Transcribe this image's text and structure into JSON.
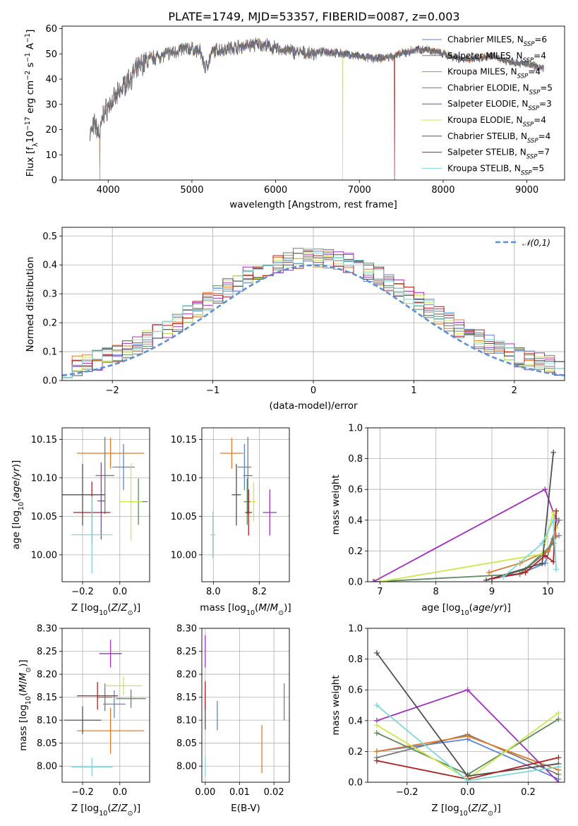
{
  "title": "PLATE=1749, MJD=53357, FIBERID=0087, z=0.003",
  "models": [
    {
      "name": "Chabrier MILES",
      "n": "6",
      "color": "#5b84d6"
    },
    {
      "name": "Salpeter MILES",
      "n": "4",
      "color": "#7a7a7a"
    },
    {
      "name": "Kroupa MILES",
      "n": "4",
      "color": "#e07a2a"
    },
    {
      "name": "Chabrier ELODIE",
      "n": "5",
      "color": "#5e8a60"
    },
    {
      "name": "Salpeter ELODIE",
      "n": "3",
      "color": "#a030c0"
    },
    {
      "name": "Kroupa ELODIE",
      "n": "4",
      "color": "#cce84a"
    },
    {
      "name": "Chabrier STELIB",
      "n": "4",
      "color": "#505050"
    },
    {
      "name": "Salpeter STELIB",
      "n": "7",
      "color": "#b02020"
    },
    {
      "name": "Kroupa STELIB",
      "n": "5",
      "color": "#7fd8d8"
    }
  ],
  "chart_data": [
    {
      "id": "spectrum",
      "type": "line",
      "xlabel": "wavelength [Angstrom, rest frame]",
      "ylabel": "Flux [f_λ 10^-17 erg cm^-2 s^-1 A^-1]",
      "xlim": [
        3450,
        9450
      ],
      "ylim": [
        0,
        61
      ],
      "xticks": [
        4000,
        5000,
        6000,
        7000,
        8000,
        9000
      ],
      "yticks": [
        0,
        10,
        20,
        30,
        40,
        50,
        60
      ],
      "grid": false,
      "legend": "top-right",
      "continuum": [
        [
          3780,
          18
        ],
        [
          3840,
          22
        ],
        [
          3900,
          18
        ],
        [
          3940,
          26
        ],
        [
          3980,
          28
        ],
        [
          4020,
          30
        ],
        [
          4100,
          33
        ],
        [
          4200,
          38
        ],
        [
          4300,
          42
        ],
        [
          4400,
          46
        ],
        [
          4500,
          48
        ],
        [
          4600,
          49
        ],
        [
          4700,
          50
        ],
        [
          4800,
          51
        ],
        [
          4900,
          52
        ],
        [
          5000,
          52
        ],
        [
          5100,
          51
        ],
        [
          5160,
          44
        ],
        [
          5250,
          51
        ],
        [
          5400,
          52
        ],
        [
          5600,
          53
        ],
        [
          5800,
          54
        ],
        [
          5900,
          53
        ],
        [
          6000,
          52
        ],
        [
          6200,
          51
        ],
        [
          6400,
          50
        ],
        [
          6600,
          51
        ],
        [
          6800,
          50
        ],
        [
          7000,
          49
        ],
        [
          7200,
          48
        ],
        [
          7400,
          49
        ],
        [
          7600,
          51
        ],
        [
          7800,
          52
        ],
        [
          8000,
          50
        ],
        [
          8200,
          48
        ],
        [
          8400,
          48
        ],
        [
          8600,
          49
        ],
        [
          8800,
          47
        ],
        [
          9000,
          46
        ],
        [
          9200,
          44
        ]
      ],
      "spikes": [
        {
          "x": 3900,
          "y": 0,
          "series": "Kroupa MILES"
        },
        {
          "x": 6800,
          "y": 0,
          "series": "Kroupa ELODIE"
        },
        {
          "x": 7420,
          "y": 0,
          "series": "Salpeter STELIB"
        }
      ]
    },
    {
      "id": "residuals",
      "type": "histogram",
      "xlabel": "(data-model)/error",
      "ylabel": "Normed distribution",
      "xlim": [
        -2.5,
        2.5
      ],
      "ylim": [
        0,
        0.53
      ],
      "xticks": [
        -2,
        -1,
        0,
        1,
        2
      ],
      "yticks": [
        0.0,
        0.1,
        0.2,
        0.3,
        0.4,
        0.5
      ],
      "grid": true,
      "legend": "top-right",
      "reference": {
        "name": "𝒩(0,1)",
        "color": "#5b8fd6",
        "style": "dashed"
      }
    },
    {
      "id": "age_vs_Z",
      "type": "errorbar",
      "xlabel": "Z [log10(Z/Z⊙)]",
      "ylabel": "age [log10(age/yr)]",
      "xlim": [
        -0.31,
        0.16
      ],
      "ylim": [
        9.965,
        10.165
      ],
      "xticks": [
        -0.2,
        0.0
      ],
      "yticks": [
        10.0,
        10.05,
        10.1,
        10.15
      ],
      "grid": true,
      "points": [
        {
          "series": "Chabrier MILES",
          "x": 0.02,
          "y": 10.114,
          "xerr": 0.06,
          "yerr": 0.03
        },
        {
          "series": "Salpeter MILES",
          "x": -0.08,
          "y": 10.103,
          "xerr": 0.05,
          "yerr": 0.05
        },
        {
          "series": "Kroupa MILES",
          "x": -0.05,
          "y": 10.132,
          "xerr": 0.18,
          "yerr": 0.02
        },
        {
          "series": "Chabrier ELODIE",
          "x": 0.1,
          "y": 10.069,
          "xerr": 0.05,
          "yerr": 0.03
        },
        {
          "series": "Salpeter ELODIE",
          "x": -0.1,
          "y": 10.07,
          "xerr": 0.02,
          "yerr": 0.05
        },
        {
          "series": "Kroupa ELODIE",
          "x": 0.06,
          "y": 10.069,
          "xerr": 0.06,
          "yerr": 0.05
        },
        {
          "series": "Chabrier STELIB",
          "x": -0.2,
          "y": 10.078,
          "xerr": 0.12,
          "yerr": 0.04
        },
        {
          "series": "Salpeter STELIB",
          "x": -0.15,
          "y": 10.055,
          "xerr": 0.1,
          "yerr": 0.04
        },
        {
          "series": "Kroupa STELIB",
          "x": -0.15,
          "y": 10.026,
          "xerr": 0.11,
          "yerr": 0.05
        }
      ]
    },
    {
      "id": "age_vs_mass",
      "type": "errorbar",
      "xlabel": "mass [log10(M/M⊙)]",
      "ylabel": "",
      "xlim": [
        7.95,
        8.33
      ],
      "ylim": [
        9.965,
        10.165
      ],
      "xticks": [
        8.0,
        8.2
      ],
      "yticks": [
        10.0,
        10.05,
        10.1,
        10.15
      ],
      "grid": true,
      "points": [
        {
          "series": "Chabrier MILES",
          "x": 8.135,
          "y": 10.114,
          "xerr": 0.03,
          "yerr": 0.03
        },
        {
          "series": "Salpeter MILES",
          "x": 8.15,
          "y": 10.103,
          "xerr": 0.02,
          "yerr": 0.05
        },
        {
          "series": "Kroupa MILES",
          "x": 8.08,
          "y": 10.132,
          "xerr": 0.05,
          "yerr": 0.02
        },
        {
          "series": "Chabrier ELODIE",
          "x": 8.147,
          "y": 10.069,
          "xerr": 0.015,
          "yerr": 0.03
        },
        {
          "series": "Salpeter ELODIE",
          "x": 8.245,
          "y": 10.055,
          "xerr": 0.03,
          "yerr": 0.03
        },
        {
          "series": "Kroupa ELODIE",
          "x": 8.175,
          "y": 10.069,
          "xerr": 0.01,
          "yerr": 0.025
        },
        {
          "series": "Chabrier STELIB",
          "x": 8.1,
          "y": 10.078,
          "xerr": 0.02,
          "yerr": 0.04
        },
        {
          "series": "Salpeter STELIB",
          "x": 8.153,
          "y": 10.055,
          "xerr": 0.015,
          "yerr": 0.03
        },
        {
          "series": "Kroupa STELIB",
          "x": 7.998,
          "y": 10.026,
          "xerr": 0.01,
          "yerr": 0.03
        }
      ]
    },
    {
      "id": "weight_vs_age",
      "type": "line",
      "xlabel": "age [log10(age/yr)]",
      "ylabel": "mass weight",
      "xlim": [
        6.78,
        10.3
      ],
      "ylim": [
        0,
        1.0
      ],
      "xticks": [
        7,
        8,
        9,
        10
      ],
      "yticks": [
        0.0,
        0.2,
        0.4,
        0.6,
        0.8,
        1.0
      ],
      "grid": true,
      "series": [
        {
          "name": "Chabrier MILES",
          "x": [
            9.0,
            9.5,
            9.95,
            10.1,
            10.2
          ],
          "y": [
            0.02,
            0.05,
            0.12,
            0.28,
            0.3
          ]
        },
        {
          "name": "Salpeter MILES",
          "x": [
            9.0,
            9.6,
            10.0,
            10.2
          ],
          "y": [
            0.02,
            0.08,
            0.2,
            0.4
          ]
        },
        {
          "name": "Kroupa MILES",
          "x": [
            8.95,
            9.5,
            10.0,
            10.15
          ],
          "y": [
            0.06,
            0.12,
            0.2,
            0.3
          ]
        },
        {
          "name": "Chabrier ELODIE",
          "x": [
            6.9,
            9.5,
            10.1,
            10.15
          ],
          "y": [
            0.0,
            0.05,
            0.25,
            0.41
          ]
        },
        {
          "name": "Salpeter ELODIE",
          "x": [
            6.88,
            9.95,
            10.15
          ],
          "y": [
            0.0,
            0.6,
            0.4
          ]
        },
        {
          "name": "Kroupa ELODIE",
          "x": [
            7.0,
            9.9,
            10.1,
            10.15
          ],
          "y": [
            0.0,
            0.18,
            0.45,
            0.35
          ]
        },
        {
          "name": "Chabrier STELIB",
          "x": [
            8.9,
            9.9,
            10.1
          ],
          "y": [
            0.01,
            0.12,
            0.84
          ]
        },
        {
          "name": "Salpeter STELIB",
          "x": [
            9.0,
            9.6,
            9.95,
            10.1,
            10.15
          ],
          "y": [
            0.02,
            0.06,
            0.17,
            0.13,
            0.46
          ]
        },
        {
          "name": "Kroupa STELIB",
          "x": [
            9.2,
            9.9,
            10.1,
            10.15
          ],
          "y": [
            0.03,
            0.25,
            0.4,
            0.08
          ]
        }
      ]
    },
    {
      "id": "mass_vs_Z",
      "type": "errorbar",
      "xlabel": "Z [log10(Z/Z⊙)]",
      "ylabel": "mass [log10(M/M⊙)]",
      "xlim": [
        -0.31,
        0.16
      ],
      "ylim": [
        7.965,
        8.3
      ],
      "xticks": [
        -0.2,
        0.0
      ],
      "yticks": [
        8.0,
        8.05,
        8.1,
        8.15,
        8.2,
        8.25,
        8.3
      ],
      "grid": true,
      "points": [
        {
          "series": "Chabrier MILES",
          "x": -0.03,
          "y": 8.135,
          "xerr": 0.06,
          "yerr": 0.03
        },
        {
          "series": "Salpeter MILES",
          "x": -0.08,
          "y": 8.15,
          "xerr": 0.04,
          "yerr": 0.03
        },
        {
          "series": "Kroupa MILES",
          "x": -0.05,
          "y": 8.077,
          "xerr": 0.18,
          "yerr": 0.05
        },
        {
          "series": "Chabrier ELODIE",
          "x": 0.06,
          "y": 8.147,
          "xerr": 0.08,
          "yerr": 0.02
        },
        {
          "series": "Salpeter ELODIE",
          "x": -0.05,
          "y": 8.245,
          "xerr": 0.06,
          "yerr": 0.03
        },
        {
          "series": "Kroupa ELODIE",
          "x": 0.02,
          "y": 8.175,
          "xerr": 0.1,
          "yerr": 0.02
        },
        {
          "series": "Chabrier STELIB",
          "x": -0.2,
          "y": 8.1,
          "xerr": 0.1,
          "yerr": 0.03
        },
        {
          "series": "Salpeter STELIB",
          "x": -0.12,
          "y": 8.153,
          "xerr": 0.11,
          "yerr": 0.03
        },
        {
          "series": "Kroupa STELIB",
          "x": -0.15,
          "y": 7.998,
          "xerr": 0.11,
          "yerr": 0.02
        }
      ]
    },
    {
      "id": "mass_vs_EBV",
      "type": "errorbar",
      "xlabel": "E(B-V)",
      "ylabel": "",
      "xlim": [
        -0.001,
        0.0245
      ],
      "ylim": [
        7.965,
        8.3
      ],
      "xticks": [
        0.0,
        0.01,
        0.02
      ],
      "yticks": [
        8.0,
        8.05,
        8.1,
        8.15,
        8.2,
        8.25,
        8.3
      ],
      "grid": true,
      "points": [
        {
          "series": "Chabrier MILES",
          "x": 0.0035,
          "y": 8.11,
          "xerr": 0,
          "yerr": 0.032
        },
        {
          "series": "Salpeter MILES",
          "x": 0.0,
          "y": 8.15,
          "xerr": 0,
          "yerr": 0.03
        },
        {
          "series": "Kroupa MILES",
          "x": 0.0165,
          "y": 8.037,
          "xerr": 0,
          "yerr": 0.052
        },
        {
          "series": "Salpeter ELODIE",
          "x": 0.0,
          "y": 8.25,
          "xerr": 0,
          "yerr": 0.035
        },
        {
          "series": "Chabrier STELIB",
          "x": 0.0,
          "y": 8.12,
          "xerr": 0,
          "yerr": 0.04
        },
        {
          "series": "Salpeter STELIB",
          "x": 0.0,
          "y": 8.155,
          "xerr": 0,
          "yerr": 0.03
        },
        {
          "series": "Salpeter MILES",
          "x": 0.023,
          "y": 8.14,
          "xerr": 0,
          "yerr": 0.04
        },
        {
          "series": "Kroupa STELIB",
          "x": 0.0,
          "y": 8.0,
          "xerr": 0,
          "yerr": 0.02
        }
      ]
    },
    {
      "id": "weight_vs_Z",
      "type": "line",
      "xlabel": "Z [log10(Z/Z⊙)]",
      "ylabel": "mass weight",
      "xlim": [
        -0.33,
        0.32
      ],
      "ylim": [
        0,
        1.0
      ],
      "xticks": [
        -0.2,
        0.0,
        0.2
      ],
      "yticks": [
        0.0,
        0.2,
        0.4,
        0.6,
        0.8,
        1.0
      ],
      "grid": true,
      "series": [
        {
          "name": "Chabrier MILES",
          "x": [
            -0.3,
            0.0,
            0.3
          ],
          "y": [
            0.2,
            0.28,
            0.02
          ]
        },
        {
          "name": "Salpeter MILES",
          "x": [
            -0.3,
            0.0,
            0.3
          ],
          "y": [
            0.16,
            0.31,
            0.05
          ]
        },
        {
          "name": "Kroupa MILES",
          "x": [
            -0.3,
            0.0,
            0.3
          ],
          "y": [
            0.2,
            0.3,
            0.08
          ]
        },
        {
          "name": "Chabrier ELODIE",
          "x": [
            -0.3,
            0.0,
            0.3
          ],
          "y": [
            0.32,
            0.05,
            0.41
          ]
        },
        {
          "name": "Salpeter ELODIE",
          "x": [
            -0.3,
            0.0,
            0.3
          ],
          "y": [
            0.4,
            0.6,
            0.0
          ]
        },
        {
          "name": "Kroupa ELODIE",
          "x": [
            -0.3,
            0.0,
            0.3
          ],
          "y": [
            0.37,
            0.02,
            0.45
          ]
        },
        {
          "name": "Chabrier STELIB",
          "x": [
            -0.3,
            0.0,
            0.3
          ],
          "y": [
            0.84,
            0.04,
            0.12
          ]
        },
        {
          "name": "Salpeter STELIB",
          "x": [
            -0.3,
            0.0,
            0.3
          ],
          "y": [
            0.14,
            0.02,
            0.16
          ]
        },
        {
          "name": "Kroupa STELIB",
          "x": [
            -0.3,
            0.0,
            0.3
          ],
          "y": [
            0.5,
            0.01,
            0.1
          ]
        }
      ]
    }
  ]
}
